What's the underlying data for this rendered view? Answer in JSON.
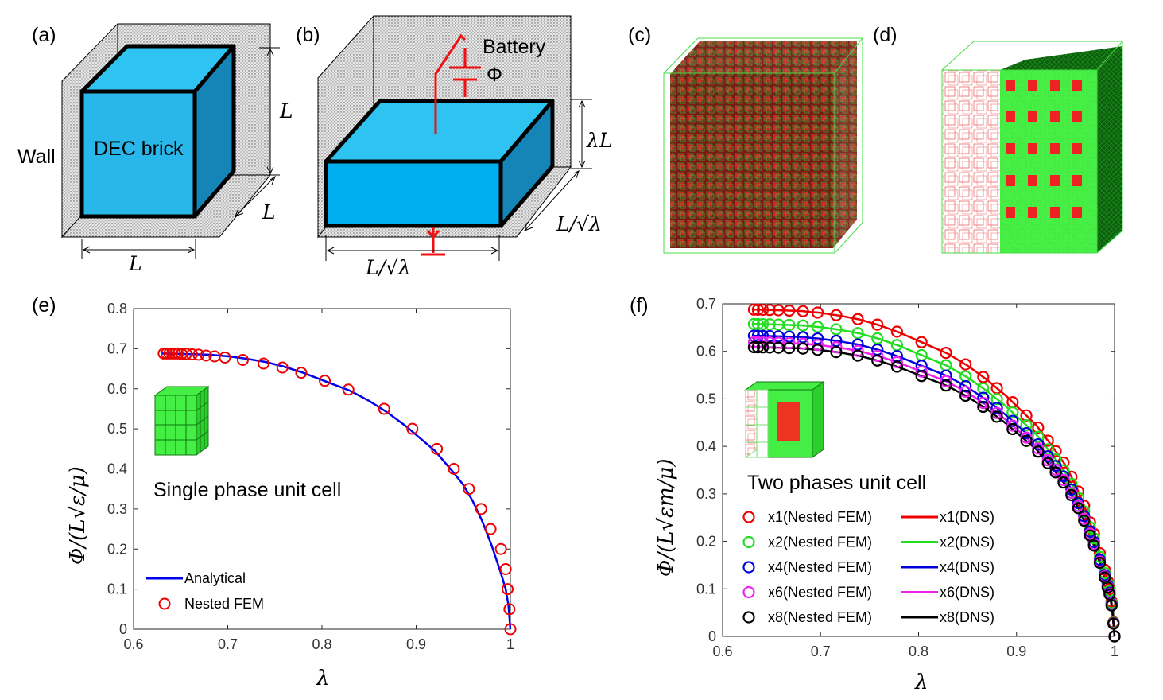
{
  "panel_labels": [
    "(a)",
    "(b)",
    "(c)",
    "(d)",
    "(e)",
    "(f)"
  ],
  "schematic_a": {
    "wall": "Wall",
    "brick": "DEC brick",
    "dim_height": "L",
    "dim_depth": "L",
    "dim_width": "L"
  },
  "schematic_b": {
    "battery": "Battery",
    "phi": "Φ",
    "dim_height": "λL",
    "dim_depth": "L/√λ",
    "dim_width": "L/√λ"
  },
  "colors": {
    "brick": "#29b6e8",
    "brick_side": "#1585b8",
    "wall": "#d9d9d9",
    "green": "#33ee33",
    "red": "#ee2222"
  },
  "chart_data": [
    {
      "type": "line",
      "panel": "(e)",
      "xlabel": "λ",
      "ylabel": "Φ/(L√ε/μ)",
      "xlim": [
        0.6,
        1
      ],
      "ylim": [
        0,
        0.8
      ],
      "xticks": [
        0.6,
        0.7,
        0.8,
        0.9,
        1
      ],
      "yticks": [
        0,
        0.1,
        0.2,
        0.3,
        0.4,
        0.5,
        0.6,
        0.7,
        0.8
      ],
      "xtick_labels": [
        "0.6",
        "0.7",
        "0.8",
        "0.9",
        "1"
      ],
      "ytick_labels": [
        "0",
        "0.1",
        "0.2",
        "0.3",
        "0.4",
        "0.5",
        "0.6",
        "0.7",
        "0.8"
      ],
      "annotation": "Single phase unit cell",
      "legend_position": "bottom-left",
      "series": [
        {
          "name": "Analytical",
          "kind": "line",
          "color": "#0000ee",
          "x": [
            0.63,
            0.65,
            0.68,
            0.7,
            0.72,
            0.74,
            0.76,
            0.78,
            0.8,
            0.83,
            0.85,
            0.87,
            0.89,
            0.9,
            0.92,
            0.94,
            0.95,
            0.96,
            0.97,
            0.98,
            0.99,
            0.995,
            0.998,
            1
          ],
          "y": [
            0.688,
            0.687,
            0.685,
            0.681,
            0.675,
            0.667,
            0.655,
            0.64,
            0.622,
            0.595,
            0.57,
            0.54,
            0.505,
            0.485,
            0.445,
            0.39,
            0.36,
            0.32,
            0.27,
            0.21,
            0.14,
            0.1,
            0.06,
            0
          ]
        },
        {
          "name": "Nested FEM",
          "kind": "marker",
          "color": "#ee0000",
          "x": [
            0.632,
            0.635,
            0.638,
            0.641,
            0.644,
            0.647,
            0.651,
            0.656,
            0.662,
            0.669,
            0.677,
            0.686,
            0.697,
            0.716,
            0.738,
            0.758,
            0.778,
            0.803,
            0.828,
            0.866,
            0.896,
            0.922,
            0.94,
            0.956,
            0.969,
            0.979,
            0.99,
            0.995,
            0.997,
            0.999,
            1.0
          ],
          "y": [
            0.688,
            0.688,
            0.688,
            0.688,
            0.688,
            0.688,
            0.687,
            0.687,
            0.686,
            0.685,
            0.683,
            0.681,
            0.678,
            0.672,
            0.663,
            0.653,
            0.64,
            0.62,
            0.598,
            0.55,
            0.5,
            0.45,
            0.4,
            0.35,
            0.3,
            0.25,
            0.2,
            0.15,
            0.1,
            0.05,
            0.0
          ]
        }
      ],
      "legend": [
        "Analytical",
        "Nested FEM"
      ]
    },
    {
      "type": "line",
      "panel": "(f)",
      "xlabel": "λ",
      "ylabel": "Φ/(L√εm/μ)",
      "xlim": [
        0.6,
        1
      ],
      "ylim": [
        0,
        0.7
      ],
      "xticks": [
        0.6,
        0.7,
        0.8,
        0.9,
        1
      ],
      "yticks": [
        0,
        0.1,
        0.2,
        0.3,
        0.4,
        0.5,
        0.6,
        0.7
      ],
      "xtick_labels": [
        "0.6",
        "0.7",
        "0.8",
        "0.9",
        "1"
      ],
      "ytick_labels": [
        "0",
        "0.1",
        "0.2",
        "0.3",
        "0.4",
        "0.5",
        "0.6",
        "0.7"
      ],
      "annotation": "Two phases unit cell",
      "legend_position": "bottom-left",
      "series": [
        {
          "name": "x1(Nested FEM)",
          "kind": "marker",
          "color": "#ee0000",
          "scale": 1.0
        },
        {
          "name": "x2(Nested FEM)",
          "kind": "marker",
          "color": "#22dd22",
          "scale": 0.956
        },
        {
          "name": "x4(Nested FEM)",
          "kind": "marker",
          "color": "#0000dd",
          "scale": 0.92
        },
        {
          "name": "x6(Nested FEM)",
          "kind": "marker",
          "color": "#ee22ee",
          "scale": 0.9
        },
        {
          "name": "x8(Nested FEM)",
          "kind": "marker",
          "color": "#000000",
          "scale": 0.885
        },
        {
          "name": "x1(DNS)",
          "kind": "line",
          "color": "#ee0000",
          "scale": 1.0
        },
        {
          "name": "x2(DNS)",
          "kind": "line",
          "color": "#22dd22",
          "scale": 0.956
        },
        {
          "name": "x4(DNS)",
          "kind": "line",
          "color": "#0000dd",
          "scale": 0.92
        },
        {
          "name": "x6(DNS)",
          "kind": "line",
          "color": "#ee22ee",
          "scale": 0.9
        },
        {
          "name": "x8(DNS)",
          "kind": "line",
          "color": "#000000",
          "scale": 0.885
        }
      ],
      "base_curve": {
        "x": [
          0.63,
          0.65,
          0.68,
          0.7,
          0.72,
          0.74,
          0.76,
          0.78,
          0.8,
          0.83,
          0.85,
          0.87,
          0.89,
          0.9,
          0.92,
          0.94,
          0.95,
          0.96,
          0.97,
          0.98,
          0.99,
          0.995,
          0.998,
          1
        ],
        "y": [
          0.688,
          0.687,
          0.685,
          0.681,
          0.675,
          0.667,
          0.655,
          0.64,
          0.622,
          0.595,
          0.57,
          0.54,
          0.505,
          0.485,
          0.445,
          0.39,
          0.36,
          0.32,
          0.27,
          0.21,
          0.14,
          0.1,
          0.06,
          0
        ]
      },
      "marker_x": [
        0.632,
        0.636,
        0.641,
        0.648,
        0.657,
        0.668,
        0.682,
        0.697,
        0.716,
        0.738,
        0.758,
        0.778,
        0.803,
        0.828,
        0.848,
        0.866,
        0.88,
        0.896,
        0.91,
        0.922,
        0.932,
        0.94,
        0.948,
        0.956,
        0.963,
        0.969,
        0.975,
        0.979,
        0.985,
        0.99,
        0.993,
        0.995,
        0.997,
        0.999,
        1.0
      ],
      "legend": [
        "x1(Nested FEM)",
        "x2(Nested FEM)",
        "x4(Nested FEM)",
        "x6(Nested FEM)",
        "x8(Nested FEM)",
        "x1(DNS)",
        "x2(DNS)",
        "x4(DNS)",
        "x6(DNS)",
        "x8(DNS)"
      ]
    }
  ]
}
